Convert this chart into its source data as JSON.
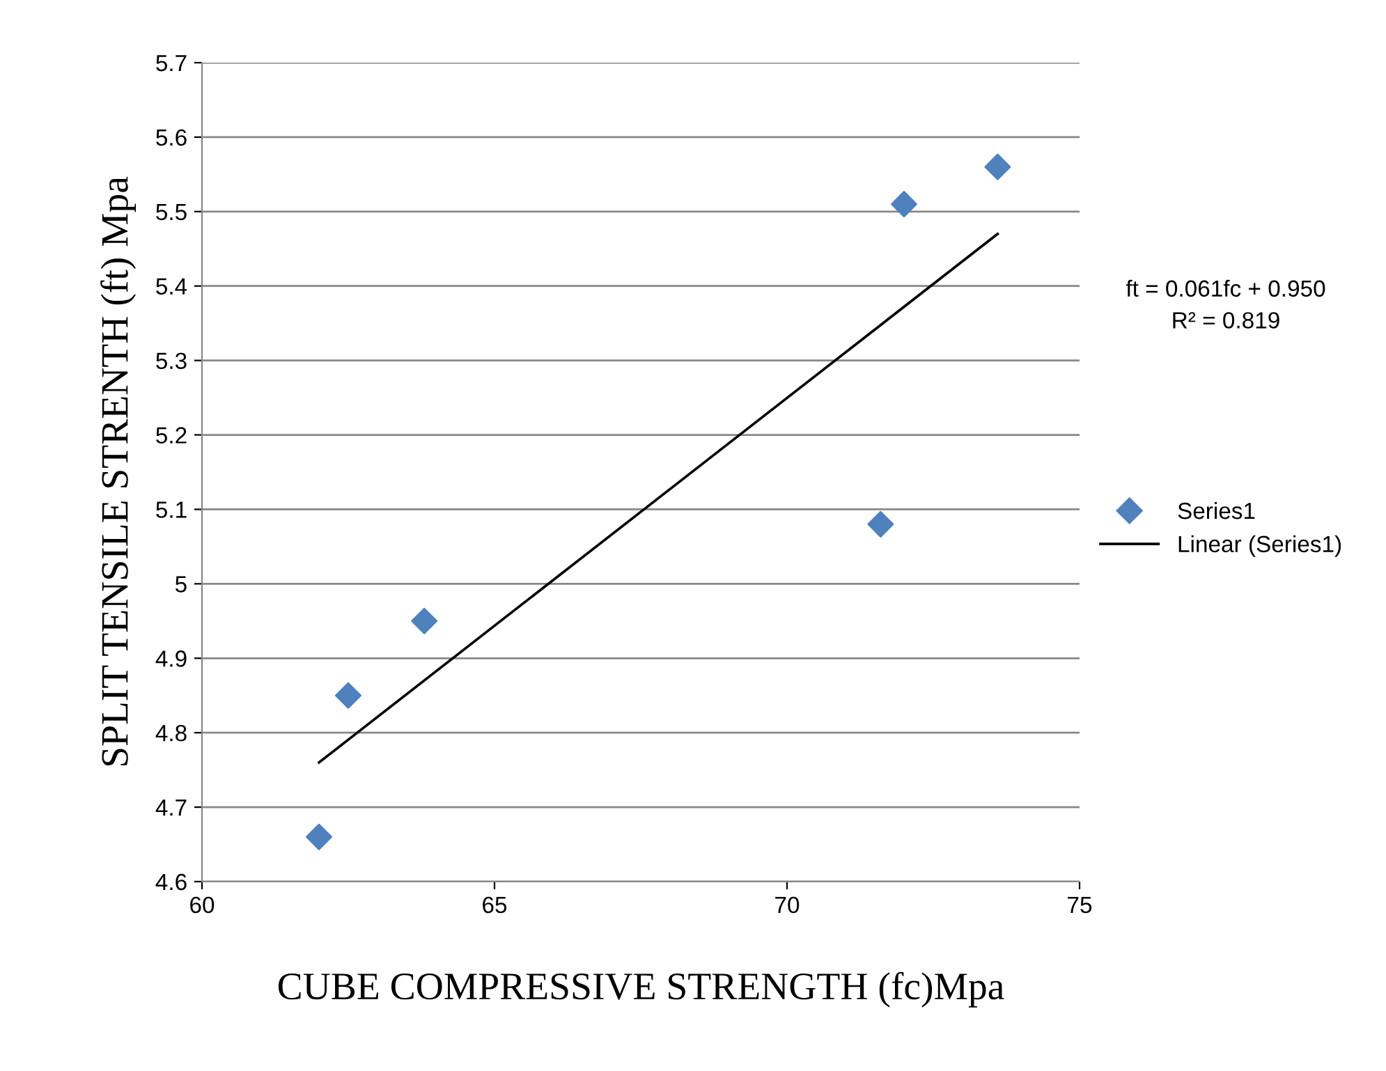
{
  "chart_data": {
    "type": "scatter",
    "xlabel": "CUBE COMPRESSIVE STRENGTH (fc)Mpa",
    "ylabel": "SPLIT TENSILE STRENTH (ft) Mpa",
    "series": [
      {
        "name": "Series1",
        "color": "#4f81bd",
        "marker": "diamond",
        "x": [
          62.0,
          62.5,
          63.8,
          71.6,
          72.0,
          73.6
        ],
        "values": [
          4.66,
          4.85,
          4.95,
          5.08,
          5.51,
          5.56
        ]
      },
      {
        "name": "Linear (Series1)",
        "type": "line",
        "color": "#000000",
        "marker": "none",
        "line_style": "solid",
        "x": [
          62.0,
          73.6
        ],
        "values": [
          4.76,
          5.47
        ]
      }
    ],
    "annotations": [
      "ft = 0.061fc + 0.950",
      "R² = 0.819"
    ],
    "xlim": [
      60,
      75
    ],
    "xticks": [
      60,
      65,
      70,
      75
    ],
    "ylim": [
      4.6,
      5.7
    ],
    "yticks": [
      {
        "value": 4.6,
        "label": "4.6"
      },
      {
        "value": 4.7,
        "label": "4.7"
      },
      {
        "value": 4.8,
        "label": "4.8"
      },
      {
        "value": 4.9,
        "label": "4.9"
      },
      {
        "value": 5.0,
        "label": "5"
      },
      {
        "value": 5.1,
        "label": "5.1"
      },
      {
        "value": 5.2,
        "label": "5.2"
      },
      {
        "value": 5.3,
        "label": "5.3"
      },
      {
        "value": 5.4,
        "label": "5.4"
      },
      {
        "value": 5.5,
        "label": "5.5"
      },
      {
        "value": 5.6,
        "label": "5.6"
      },
      {
        "value": 5.7,
        "label": "5.7"
      }
    ],
    "grid": "y",
    "legend": "right"
  }
}
